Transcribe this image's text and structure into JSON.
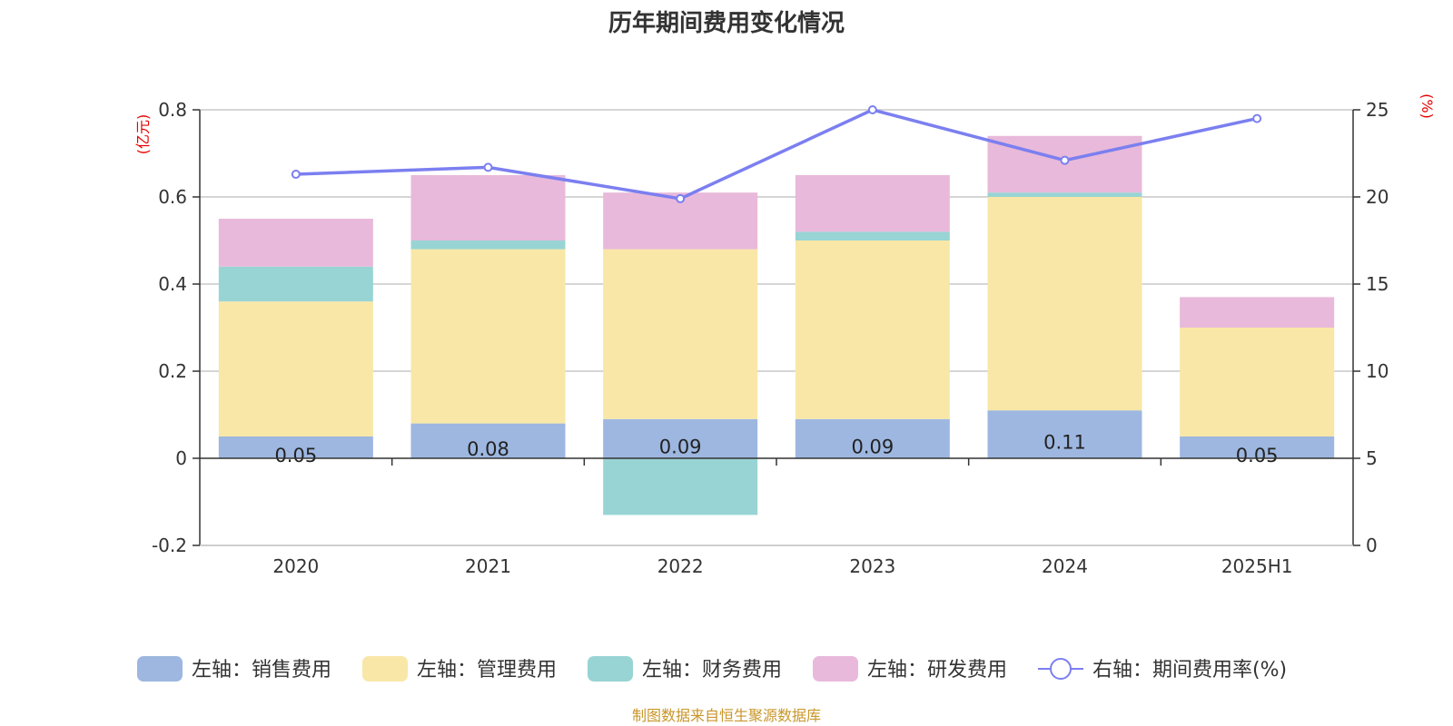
{
  "chart_data": {
    "type": "bar",
    "title": "历年期间费用变化情况",
    "categories": [
      "2020",
      "2021",
      "2022",
      "2023",
      "2024",
      "2025H1"
    ],
    "left_axis": {
      "unit": "(亿元)",
      "range": [
        -0.2,
        0.8
      ],
      "ticks": [
        "-0.2",
        "0",
        "0.2",
        "0.4",
        "0.6",
        "0.8"
      ]
    },
    "right_axis": {
      "unit": "(%)",
      "range": [
        0,
        25
      ],
      "ticks": [
        "0",
        "5",
        "10",
        "15",
        "20",
        "25"
      ]
    },
    "series": [
      {
        "name": "左轴：销售费用",
        "type": "bar",
        "stack": true,
        "color": "#9db7e0",
        "values": [
          0.05,
          0.08,
          0.09,
          0.09,
          0.11,
          0.05
        ],
        "labels": [
          "0.05",
          "0.08",
          "0.09",
          "0.09",
          "0.11",
          "0.05"
        ]
      },
      {
        "name": "左轴：管理费用",
        "type": "bar",
        "stack": true,
        "color": "#f8e7a7",
        "values": [
          0.31,
          0.4,
          0.39,
          0.41,
          0.49,
          0.25
        ]
      },
      {
        "name": "左轴：财务费用",
        "type": "bar",
        "stack": true,
        "color": "#98d4d4",
        "values": [
          0.08,
          0.02,
          -0.13,
          0.02,
          0.01,
          0.0
        ]
      },
      {
        "name": "左轴：研发费用",
        "type": "bar",
        "stack": true,
        "color": "#e8b9da",
        "values": [
          0.11,
          0.15,
          0.13,
          0.13,
          0.13,
          0.07
        ]
      },
      {
        "name": "右轴：期间费用率(%)",
        "type": "line",
        "axis": "right",
        "color": "#7b7ff0",
        "values": [
          21.3,
          21.7,
          19.9,
          25.0,
          22.1,
          24.5
        ]
      }
    ],
    "grid": true,
    "legend": "bottom"
  },
  "source": "制图数据来自恒生聚源数据库"
}
